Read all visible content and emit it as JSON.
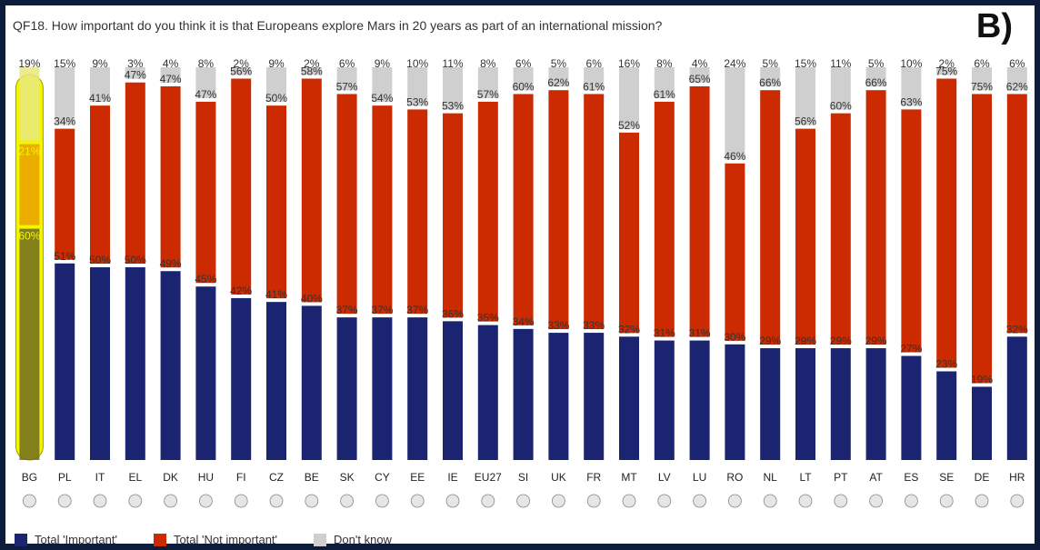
{
  "title": "QF18. How important do you think it is that Europeans explore Mars in 20 years as part of an international mission?",
  "panel_label": "B)",
  "colors": {
    "important": "#1a2470",
    "not_important": "#cc2a00",
    "dont_know": "#cfcfcf",
    "highlight": "#f5f500",
    "highlight_mid": "#e8a000"
  },
  "legend": {
    "important": "Total 'Important'",
    "not_important": "Total 'Not important'",
    "dont_know": "Don't know"
  },
  "chart_data": {
    "type": "bar",
    "stacked": true,
    "categories": [
      "BG",
      "PL",
      "IT",
      "EL",
      "DK",
      "HU",
      "FI",
      "CZ",
      "BE",
      "SK",
      "CY",
      "EE",
      "IE",
      "EU27",
      "SI",
      "UK",
      "FR",
      "MT",
      "LV",
      "LU",
      "RO",
      "NL",
      "LT",
      "PT",
      "AT",
      "ES",
      "SE",
      "DE",
      "HR"
    ],
    "series": [
      {
        "name": "Total 'Important'",
        "values": [
          60,
          51,
          50,
          50,
          49,
          45,
          42,
          41,
          40,
          37,
          37,
          37,
          36,
          35,
          34,
          33,
          33,
          32,
          31,
          31,
          30,
          29,
          29,
          29,
          29,
          27,
          23,
          19,
          32
        ]
      },
      {
        "name": "Total 'Not important'",
        "values": [
          21,
          34,
          41,
          47,
          47,
          47,
          56,
          50,
          58,
          57,
          54,
          53,
          53,
          57,
          60,
          62,
          61,
          52,
          61,
          65,
          46,
          66,
          56,
          60,
          66,
          63,
          75,
          75,
          62
        ]
      },
      {
        "name": "Don't know",
        "values": [
          19,
          15,
          9,
          3,
          4,
          8,
          2,
          9,
          2,
          6,
          9,
          10,
          11,
          8,
          6,
          5,
          6,
          16,
          8,
          4,
          24,
          5,
          15,
          11,
          5,
          10,
          2,
          6,
          6
        ]
      }
    ],
    "ylim": [
      0,
      100
    ]
  }
}
